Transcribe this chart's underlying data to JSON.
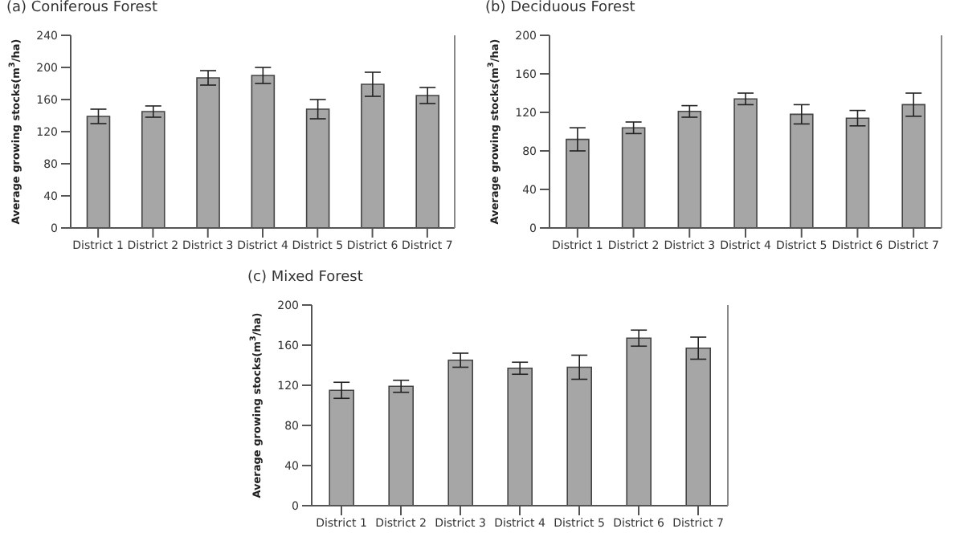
{
  "chart_data": [
    {
      "type": "bar",
      "title": "(a) Coniferous Forest",
      "ylabel": "Average growing stocks(m$^{3}$/ha)",
      "categories": [
        "District 1",
        "District 2",
        "District 3",
        "District 4",
        "District 5",
        "District 6",
        "District 7"
      ],
      "values": [
        139,
        145,
        187,
        190,
        148,
        179,
        165
      ],
      "errors": [
        9,
        7,
        9,
        10,
        12,
        15,
        10
      ],
      "color": "#a6a6a6",
      "ylim": [
        0,
        240
      ],
      "yticks": [
        0,
        40,
        80,
        120,
        160,
        200,
        240
      ],
      "grid": false,
      "legend": false
    },
    {
      "type": "bar",
      "title": "(b) Deciduous Forest",
      "ylabel": "Average growing stocks(m$^{3}$/ha)",
      "categories": [
        "District 1",
        "District 2",
        "District 3",
        "District 4",
        "District 5",
        "District 6",
        "District 7"
      ],
      "values": [
        92,
        104,
        121,
        134,
        118,
        114,
        128
      ],
      "errors": [
        12,
        6,
        6,
        6,
        10,
        8,
        12
      ],
      "color": "#a6a6a6",
      "ylim": [
        0,
        200
      ],
      "yticks": [
        0,
        40,
        80,
        120,
        160,
        200
      ],
      "grid": false,
      "legend": false
    },
    {
      "type": "bar",
      "title": "(c) Mixed Forest",
      "ylabel": "Average growing stocks(m$^{3}$/ha)",
      "categories": [
        "District 1",
        "District 2",
        "District 3",
        "District 4",
        "District 5",
        "District 6",
        "District 7"
      ],
      "values": [
        115,
        119,
        145,
        137,
        138,
        167,
        157
      ],
      "errors": [
        8,
        6,
        7,
        6,
        12,
        8,
        11
      ],
      "color": "#a6a6a6",
      "ylim": [
        0,
        200
      ],
      "yticks": [
        0,
        40,
        80,
        120,
        160,
        200
      ],
      "grid": false,
      "legend": false
    }
  ]
}
